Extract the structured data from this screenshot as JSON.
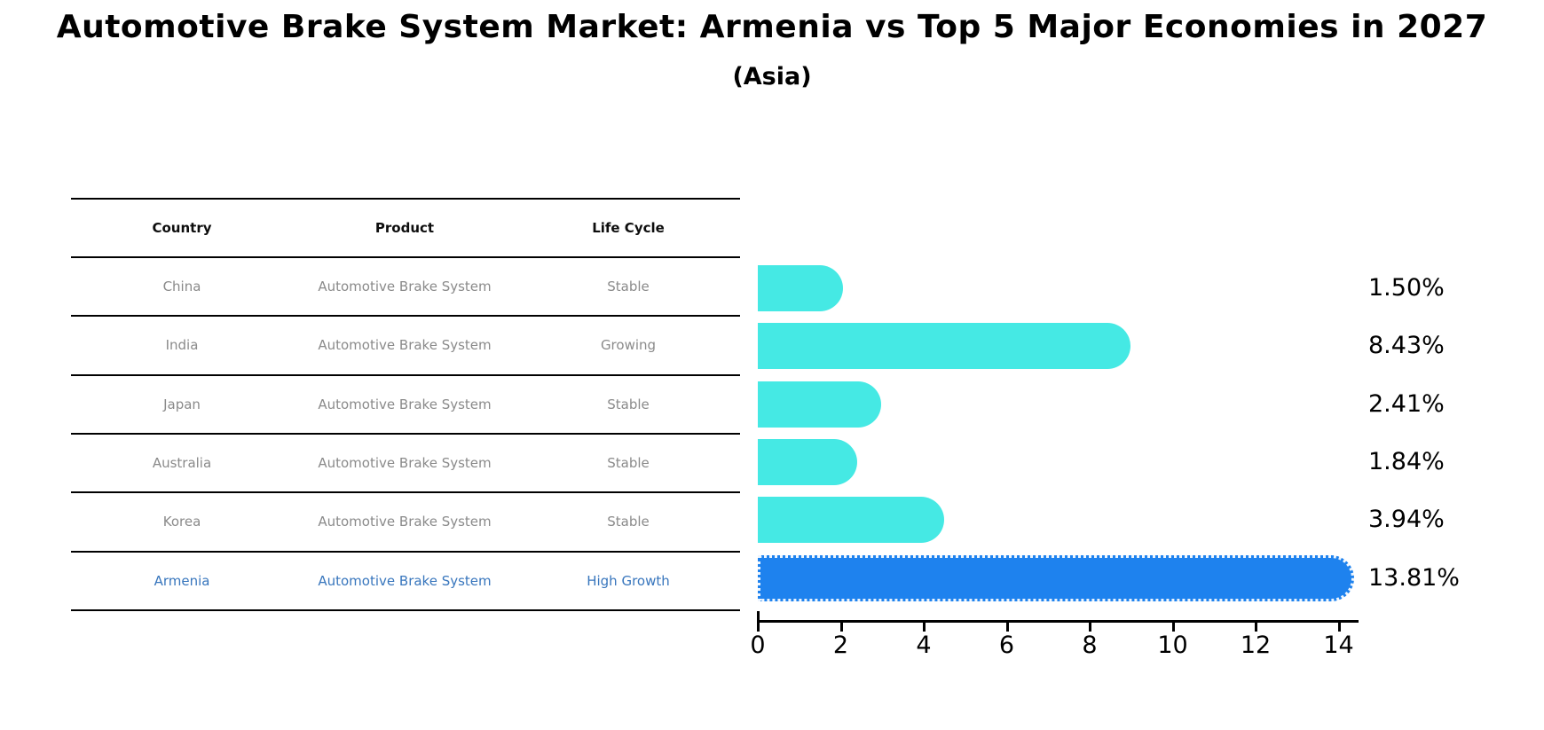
{
  "title": "Automotive Brake System Market: Armenia vs Top 5 Major Economies in 2027",
  "subtitle": "(Asia)",
  "table": {
    "headers": [
      "Country",
      "Product",
      "Life Cycle"
    ],
    "rows": [
      {
        "country": "China",
        "product": "Automotive Brake System",
        "life_cycle": "Stable",
        "highlight": false
      },
      {
        "country": "India",
        "product": "Automotive Brake System",
        "life_cycle": "Growing",
        "highlight": false
      },
      {
        "country": "Japan",
        "product": "Automotive Brake System",
        "life_cycle": "Stable",
        "highlight": false
      },
      {
        "country": "Australia",
        "product": "Automotive Brake System",
        "life_cycle": "Stable",
        "highlight": false
      },
      {
        "country": "Korea",
        "product": "Automotive Brake System",
        "life_cycle": "Stable",
        "highlight": false
      },
      {
        "country": "Armenia",
        "product": "Automotive Brake System",
        "life_cycle": "High Growth",
        "highlight": true
      }
    ]
  },
  "chart_data": {
    "type": "bar",
    "orientation": "horizontal",
    "title": "Automotive Brake System Market: Armenia vs Top 5 Major Economies in 2027 (Asia)",
    "categories": [
      "China",
      "India",
      "Japan",
      "Australia",
      "Korea",
      "Armenia"
    ],
    "values": [
      1.5,
      8.43,
      2.41,
      1.84,
      3.94,
      13.81
    ],
    "value_labels": [
      "1.50%",
      "8.43%",
      "2.41%",
      "1.84%",
      "3.94%",
      "13.81%"
    ],
    "x_ticks": [
      0,
      2,
      4,
      6,
      8,
      10,
      12,
      14
    ],
    "xlim": [
      0,
      14.45
    ],
    "xlabel": "",
    "ylabel": "",
    "grid": false,
    "legend": "none",
    "highlight_index": 5,
    "colors": {
      "bar_default": "#45e9e4",
      "bar_highlight": "#1e82ee",
      "highlight_text": "#3876bd",
      "row_text": "#8a8a8a",
      "header_text": "#0d0d0d"
    }
  }
}
